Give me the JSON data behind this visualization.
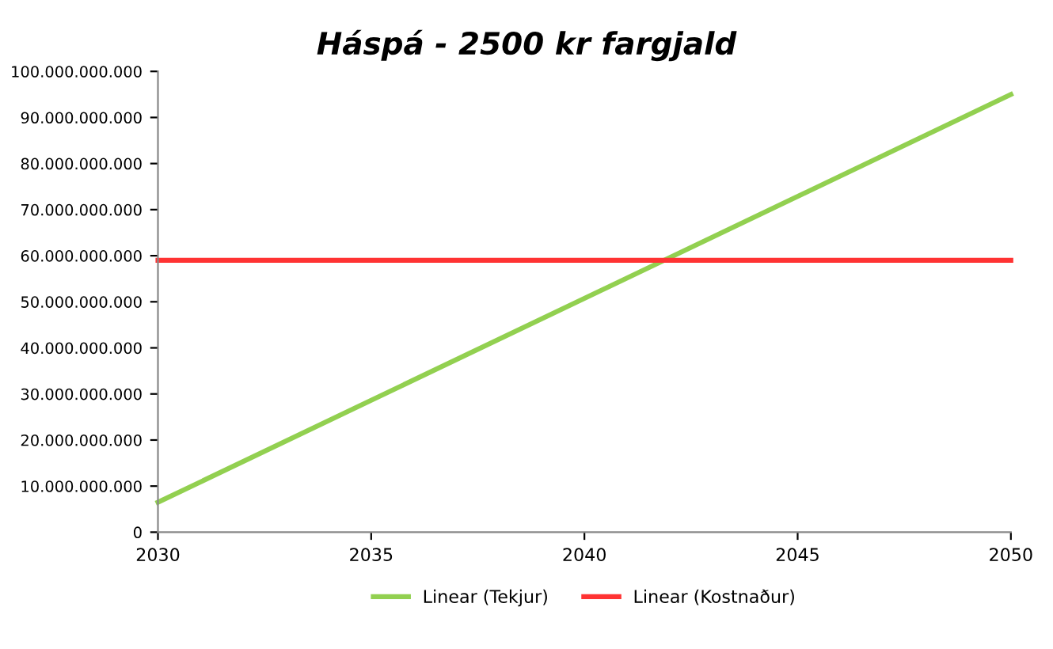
{
  "chart_data": {
    "type": "line",
    "title": "Háspá - 2500 kr fargjald",
    "series": [
      {
        "name": "Linear (Tekjur)",
        "color": "#92d050",
        "values": [
          6500000000,
          95000000000
        ]
      },
      {
        "name": "Linear (Kostnaður)",
        "color": "#ff3333",
        "values": [
          59000000000,
          59000000000
        ]
      }
    ],
    "x": [
      2030,
      2050
    ],
    "xlim": [
      2030,
      2050
    ],
    "xticks": [
      2030,
      2035,
      2040,
      2045,
      2050
    ],
    "ylim": [
      0,
      100000000000
    ],
    "yticks": [
      0,
      {
        "value": 10000000000,
        "label": "10.000.000.000"
      },
      {
        "value": 20000000000,
        "label": "20.000.000.000"
      },
      {
        "value": 30000000000,
        "label": "30.000.000.000"
      },
      {
        "value": 40000000000,
        "label": "40.000.000.000"
      },
      {
        "value": 50000000000,
        "label": "50.000.000.000"
      },
      {
        "value": 60000000000,
        "label": "60.000.000.000"
      },
      {
        "value": 70000000000,
        "label": "70.000.000.000"
      },
      {
        "value": 80000000000,
        "label": "80.000.000.000"
      },
      {
        "value": 90000000000,
        "label": "90.000.000.000"
      },
      {
        "value": 100000000000,
        "label": "100.000.000.000"
      }
    ],
    "grid": false,
    "legend": "bottom",
    "marker": "none",
    "line_style": "solid"
  }
}
